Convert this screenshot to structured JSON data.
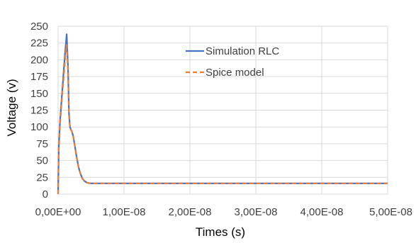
{
  "chart_data": {
    "type": "line",
    "title": "",
    "xlabel": "Times (s)",
    "ylabel": "Voltage (v)",
    "xlim": [
      0,
      5e-08
    ],
    "ylim": [
      0,
      250
    ],
    "x_ticks": [
      {
        "value": 0,
        "label": "0,00E+00"
      },
      {
        "value": 1e-08,
        "label": "1,00E-08"
      },
      {
        "value": 2e-08,
        "label": "2,00E-08"
      },
      {
        "value": 3e-08,
        "label": "3,00E-08"
      },
      {
        "value": 4e-08,
        "label": "4,00E-08"
      },
      {
        "value": 5e-08,
        "label": "5,00E-08"
      }
    ],
    "y_ticks": [
      0,
      25,
      50,
      75,
      100,
      125,
      150,
      175,
      200,
      225,
      250
    ],
    "grid": true,
    "legend_position": "top-center",
    "series": [
      {
        "name": "Simulation RLC",
        "color": "#4472c4",
        "dash": "solid",
        "x": [
          0,
          1e-10,
          3e-10,
          6e-10,
          9e-10,
          1.1e-09,
          1.3e-09,
          1.5e-09,
          1.65e-09,
          1.8e-09,
          1.95e-09,
          2.1e-09,
          2.3e-09,
          2.5e-09,
          2.8e-09,
          3.1e-09,
          3.4e-09,
          3.7e-09,
          4e-09,
          4.3e-09,
          4.6e-09,
          5e-09,
          5.5e-09,
          6e-09,
          7e-09,
          8e-09,
          1e-08,
          2e-08,
          3e-08,
          4e-08,
          5e-08
        ],
        "y": [
          0,
          70,
          110,
          150,
          190,
          215,
          238,
          190,
          120,
          100,
          96,
          93,
          86,
          74,
          56,
          40,
          30,
          23,
          19.5,
          17.5,
          16.5,
          16,
          16,
          16,
          16,
          16,
          16,
          16,
          16,
          16,
          16
        ]
      },
      {
        "name": "Spice model",
        "color": "#ed7d31",
        "dash": "dashed",
        "x": [
          0,
          1e-10,
          3e-10,
          6e-10,
          9e-10,
          1.1e-09,
          1.3e-09,
          1.5e-09,
          1.65e-09,
          1.8e-09,
          1.95e-09,
          2.1e-09,
          2.3e-09,
          2.5e-09,
          2.8e-09,
          3.1e-09,
          3.4e-09,
          3.7e-09,
          4e-09,
          4.3e-09,
          4.6e-09,
          5e-09,
          5.5e-09,
          6e-09,
          7e-09,
          8e-09,
          1e-08,
          2e-08,
          3e-08,
          4e-08,
          5e-08
        ],
        "y": [
          0,
          65,
          105,
          145,
          180,
          205,
          222,
          185,
          118,
          100,
          96,
          93,
          86,
          74,
          56,
          40,
          30,
          23,
          19.5,
          17.5,
          16.5,
          16,
          16,
          16,
          16,
          16,
          16,
          16,
          16,
          16,
          16
        ]
      }
    ]
  }
}
